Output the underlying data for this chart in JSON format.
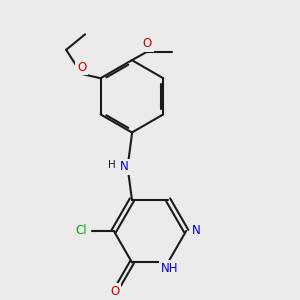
{
  "background_color": "#ebebeb",
  "atom_colors": {
    "N": "#0000cc",
    "O": "#cc0000",
    "Cl": "#00aa00"
  },
  "bond_color": "#1a1a1a",
  "bond_width": 1.5,
  "font_size": 8.5
}
